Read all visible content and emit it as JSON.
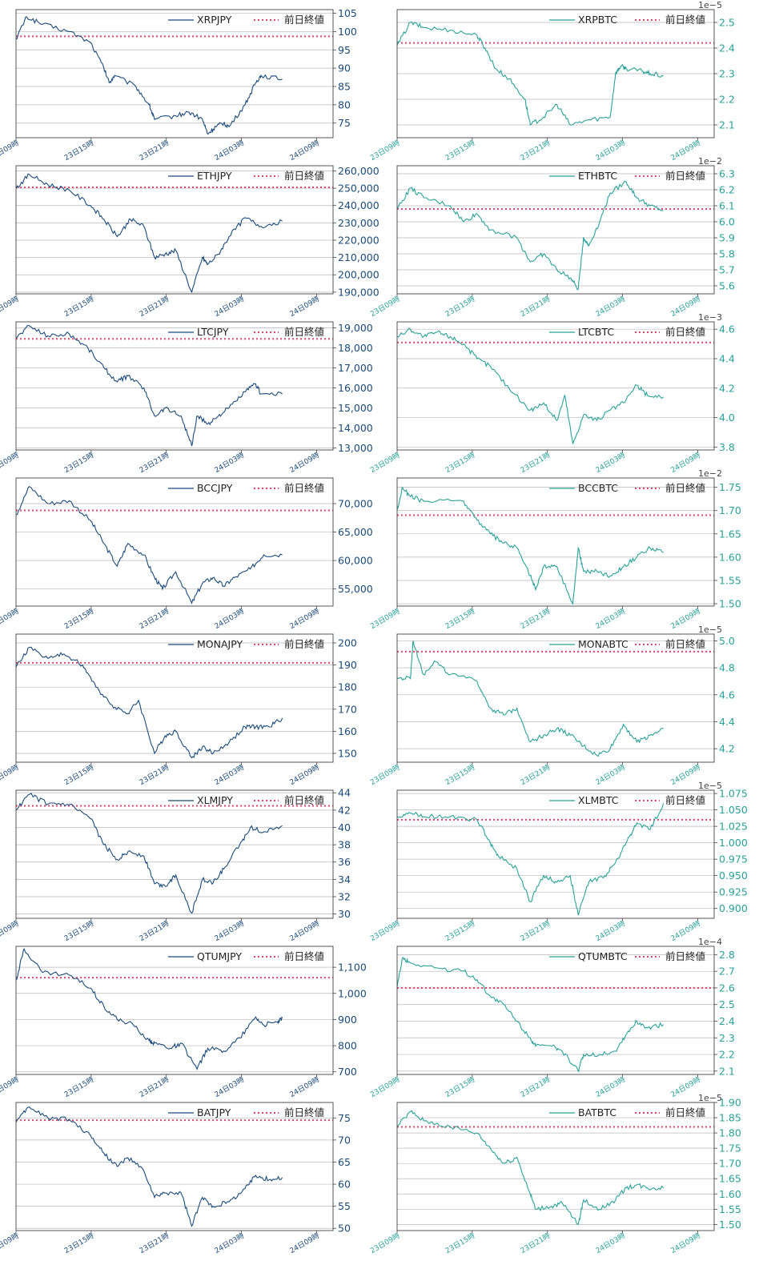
{
  "legend_ref_label": "前日終値",
  "x_tick_labels": [
    "23日09時",
    "23日15時",
    "23日21時",
    "24日03時",
    "24日09時"
  ],
  "colors": {
    "jpy": "#1b4a7a",
    "btc": "#2aa198",
    "ref": "#e0456a",
    "grid": "#b8b8b8",
    "axis": "#444444"
  },
  "chart_data": [
    {
      "type": "line",
      "title": "XRPJPY",
      "quote": "jpy",
      "ylim": [
        71,
        106
      ],
      "yticks": [
        75,
        80,
        85,
        90,
        95,
        100,
        105
      ],
      "ytick_labels": [
        "75",
        "80",
        "85",
        "90",
        "95",
        "100",
        "105"
      ],
      "ref": 98.7,
      "exp": "",
      "grid": true,
      "legend": "top-right",
      "x": [
        0,
        0.04,
        0.1,
        0.2,
        0.28,
        0.33,
        0.35,
        0.37,
        0.45,
        0.5,
        0.52,
        0.6,
        0.65,
        0.7,
        0.72,
        0.75,
        0.78,
        0.8,
        0.86,
        0.9,
        0.92,
        1.0
      ],
      "y": [
        98,
        104,
        102,
        100,
        97,
        90,
        86,
        88,
        85,
        80,
        76,
        77,
        78,
        76,
        72,
        74,
        75,
        74,
        80,
        86,
        88,
        87
      ]
    },
    {
      "type": "line",
      "title": "XRPBTC",
      "quote": "btc",
      "ylim": [
        2.05,
        2.55
      ],
      "yticks": [
        2.1,
        2.2,
        2.3,
        2.4,
        2.5
      ],
      "ytick_labels": [
        "2.1",
        "2.2",
        "2.3",
        "2.4",
        "2.5"
      ],
      "ref": 2.42,
      "exp": "1e−5",
      "grid": true,
      "legend": "top-right",
      "x": [
        0,
        0.05,
        0.1,
        0.2,
        0.3,
        0.33,
        0.37,
        0.42,
        0.48,
        0.5,
        0.55,
        0.6,
        0.65,
        0.72,
        0.8,
        0.82,
        0.84,
        0.86,
        0.92,
        0.95,
        1.0
      ],
      "y": [
        2.41,
        2.5,
        2.48,
        2.47,
        2.45,
        2.4,
        2.32,
        2.28,
        2.2,
        2.1,
        2.13,
        2.18,
        2.1,
        2.12,
        2.13,
        2.3,
        2.33,
        2.32,
        2.31,
        2.3,
        2.29
      ]
    },
    {
      "type": "line",
      "title": "ETHJPY",
      "quote": "jpy",
      "ylim": [
        189000,
        263000
      ],
      "yticks": [
        190000,
        200000,
        210000,
        220000,
        230000,
        240000,
        250000,
        260000
      ],
      "ytick_labels": [
        "190,000",
        "200,000",
        "210,000",
        "220,000",
        "230,000",
        "240,000",
        "250,000",
        "260,000"
      ],
      "ref": 250500,
      "exp": "",
      "grid": true,
      "legend": "top-right",
      "x": [
        0,
        0.05,
        0.12,
        0.2,
        0.28,
        0.33,
        0.38,
        0.43,
        0.48,
        0.52,
        0.56,
        0.6,
        0.66,
        0.7,
        0.72,
        0.76,
        0.8,
        0.86,
        0.92,
        1.0
      ],
      "y": [
        250000,
        258000,
        252000,
        249000,
        240000,
        232000,
        222000,
        232000,
        228000,
        210000,
        212000,
        214000,
        190000,
        210000,
        206000,
        212000,
        222000,
        233000,
        228000,
        231000
      ]
    },
    {
      "type": "line",
      "title": "ETHBTC",
      "quote": "btc",
      "ylim": [
        5.55,
        6.35
      ],
      "yticks": [
        5.6,
        5.7,
        5.8,
        5.9,
        6.0,
        6.1,
        6.2,
        6.3
      ],
      "ytick_labels": [
        "5.6",
        "5.7",
        "5.8",
        "5.9",
        "6.0",
        "6.1",
        "6.2",
        "6.3"
      ],
      "ref": 6.08,
      "exp": "1e−2",
      "grid": true,
      "legend": "top-right",
      "x": [
        0,
        0.05,
        0.1,
        0.2,
        0.25,
        0.3,
        0.35,
        0.45,
        0.5,
        0.55,
        0.6,
        0.65,
        0.68,
        0.7,
        0.72,
        0.76,
        0.8,
        0.86,
        0.9,
        0.95,
        1.0
      ],
      "y": [
        6.08,
        6.21,
        6.15,
        6.1,
        6.0,
        6.05,
        5.95,
        5.9,
        5.75,
        5.8,
        5.7,
        5.65,
        5.58,
        5.9,
        5.85,
        6.0,
        6.18,
        6.25,
        6.15,
        6.1,
        6.07
      ]
    },
    {
      "type": "line",
      "title": "LTCJPY",
      "quote": "jpy",
      "ylim": [
        12900,
        19300
      ],
      "yticks": [
        13000,
        14000,
        15000,
        16000,
        17000,
        18000,
        19000
      ],
      "ytick_labels": [
        "13,000",
        "14,000",
        "15,000",
        "16,000",
        "17,000",
        "18,000",
        "19,000"
      ],
      "ref": 18450,
      "exp": "",
      "grid": true,
      "legend": "top-right",
      "x": [
        0,
        0.05,
        0.12,
        0.2,
        0.27,
        0.33,
        0.38,
        0.42,
        0.48,
        0.52,
        0.56,
        0.62,
        0.66,
        0.68,
        0.72,
        0.76,
        0.8,
        0.86,
        0.9,
        0.92,
        1.0
      ],
      "y": [
        18500,
        19100,
        18600,
        18700,
        18000,
        17000,
        16300,
        16600,
        16000,
        14600,
        15000,
        14600,
        13100,
        14600,
        14200,
        14600,
        15000,
        15800,
        16200,
        15700,
        15700
      ]
    },
    {
      "type": "line",
      "title": "LTCBTC",
      "quote": "btc",
      "ylim": [
        3.78,
        4.65
      ],
      "yticks": [
        3.8,
        4.0,
        4.2,
        4.4,
        4.6
      ],
      "ytick_labels": [
        "3.8",
        "4.0",
        "4.2",
        "4.4",
        "4.6"
      ],
      "ref": 4.51,
      "exp": "1e−3",
      "grid": true,
      "legend": "top-right",
      "x": [
        0,
        0.05,
        0.1,
        0.15,
        0.2,
        0.25,
        0.3,
        0.35,
        0.42,
        0.5,
        0.55,
        0.6,
        0.63,
        0.66,
        0.7,
        0.75,
        0.8,
        0.85,
        0.9,
        0.94,
        1.0
      ],
      "y": [
        4.55,
        4.6,
        4.55,
        4.58,
        4.55,
        4.5,
        4.4,
        4.35,
        4.2,
        4.05,
        4.1,
        3.98,
        4.15,
        3.82,
        4.02,
        3.98,
        4.05,
        4.1,
        4.22,
        4.15,
        4.14
      ]
    },
    {
      "type": "line",
      "title": "BCCJPY",
      "quote": "jpy",
      "ylim": [
        52000,
        74500
      ],
      "yticks": [
        55000,
        60000,
        65000,
        70000
      ],
      "ytick_labels": [
        "55,000",
        "60,000",
        "65,000",
        "70,000"
      ],
      "ref": 68800,
      "exp": "",
      "grid": true,
      "legend": "top-right",
      "x": [
        0,
        0.05,
        0.12,
        0.2,
        0.28,
        0.33,
        0.38,
        0.42,
        0.48,
        0.52,
        0.55,
        0.6,
        0.66,
        0.7,
        0.74,
        0.78,
        0.82,
        0.88,
        0.93,
        1.0
      ],
      "y": [
        68000,
        73000,
        70000,
        70500,
        67000,
        63000,
        59000,
        63000,
        61000,
        57000,
        55000,
        58000,
        52500,
        56000,
        57000,
        55500,
        57000,
        58500,
        61000,
        61000
      ]
    },
    {
      "type": "line",
      "title": "BCCBTC",
      "quote": "btc",
      "ylim": [
        1.495,
        1.77
      ],
      "yticks": [
        1.5,
        1.55,
        1.6,
        1.65,
        1.7,
        1.75
      ],
      "ytick_labels": [
        "1.50",
        "1.55",
        "1.60",
        "1.65",
        "1.70",
        "1.75"
      ],
      "ref": 1.69,
      "exp": "1e−2",
      "grid": true,
      "legend": "top-right",
      "x": [
        0,
        0.02,
        0.05,
        0.1,
        0.25,
        0.3,
        0.35,
        0.4,
        0.45,
        0.5,
        0.52,
        0.55,
        0.6,
        0.66,
        0.68,
        0.7,
        0.75,
        0.8,
        0.85,
        0.9,
        0.95,
        1.0
      ],
      "y": [
        1.7,
        1.75,
        1.73,
        1.72,
        1.72,
        1.68,
        1.65,
        1.63,
        1.62,
        1.56,
        1.53,
        1.58,
        1.58,
        1.5,
        1.62,
        1.57,
        1.57,
        1.56,
        1.58,
        1.6,
        1.62,
        1.61
      ]
    },
    {
      "type": "line",
      "title": "MONAJPY",
      "quote": "jpy",
      "ylim": [
        146,
        204
      ],
      "yticks": [
        150,
        160,
        170,
        180,
        190,
        200
      ],
      "ytick_labels": [
        "150",
        "160",
        "170",
        "180",
        "190",
        "200"
      ],
      "ref": 191,
      "exp": "",
      "grid": true,
      "legend": "top-right",
      "x": [
        0,
        0.05,
        0.12,
        0.18,
        0.25,
        0.3,
        0.36,
        0.42,
        0.46,
        0.52,
        0.56,
        0.6,
        0.66,
        0.7,
        0.74,
        0.8,
        0.86,
        0.9,
        0.95,
        1.0
      ],
      "y": [
        189,
        198,
        193,
        195,
        190,
        180,
        172,
        168,
        174,
        150,
        158,
        160,
        148,
        153,
        150,
        155,
        162,
        162,
        162,
        166
      ]
    },
    {
      "type": "line",
      "title": "MONABTC",
      "quote": "btc",
      "ylim": [
        4.1,
        5.05
      ],
      "yticks": [
        4.2,
        4.4,
        4.6,
        4.8,
        5.0
      ],
      "ytick_labels": [
        "4.2",
        "4.4",
        "4.6",
        "4.8",
        "5.0"
      ],
      "ref": 4.92,
      "exp": "1e−5",
      "grid": true,
      "legend": "top-right",
      "x": [
        0,
        0.05,
        0.06,
        0.1,
        0.14,
        0.2,
        0.3,
        0.35,
        0.4,
        0.45,
        0.5,
        0.55,
        0.6,
        0.65,
        0.7,
        0.75,
        0.8,
        0.85,
        0.9,
        0.95,
        1.0
      ],
      "y": [
        4.72,
        4.72,
        5.0,
        4.75,
        4.85,
        4.75,
        4.7,
        4.5,
        4.45,
        4.5,
        4.25,
        4.3,
        4.35,
        4.3,
        4.22,
        4.15,
        4.2,
        4.38,
        4.25,
        4.3,
        4.35
      ]
    },
    {
      "type": "line",
      "title": "XLMJPY",
      "quote": "jpy",
      "ylim": [
        29.5,
        44.3
      ],
      "yticks": [
        30,
        32,
        34,
        36,
        38,
        40,
        42,
        44
      ],
      "ytick_labels": [
        "30",
        "32",
        "34",
        "36",
        "38",
        "40",
        "42",
        "44"
      ],
      "ref": 42.5,
      "exp": "",
      "grid": true,
      "legend": "top-right",
      "x": [
        0,
        0.05,
        0.12,
        0.2,
        0.28,
        0.33,
        0.38,
        0.42,
        0.48,
        0.52,
        0.56,
        0.6,
        0.66,
        0.7,
        0.74,
        0.78,
        0.84,
        0.88,
        0.93,
        1.0
      ],
      "y": [
        42,
        43.8,
        42.7,
        42.6,
        41,
        38,
        36.3,
        37.2,
        36.7,
        33.5,
        33.2,
        34.5,
        30.1,
        34,
        33.6,
        35.2,
        38,
        40,
        39.5,
        40.2
      ]
    },
    {
      "type": "line",
      "title": "XLMBTC",
      "quote": "btc",
      "ylim": [
        0.885,
        1.08
      ],
      "yticks": [
        0.9,
        0.925,
        0.95,
        0.975,
        1.0,
        1.025,
        1.05,
        1.075
      ],
      "ytick_labels": [
        "0.900",
        "0.925",
        "0.950",
        "0.975",
        "1.000",
        "1.025",
        "1.050",
        "1.075"
      ],
      "ref": 1.035,
      "exp": "1e−5",
      "grid": true,
      "legend": "top-right",
      "x": [
        0,
        0.05,
        0.1,
        0.2,
        0.3,
        0.35,
        0.38,
        0.45,
        0.5,
        0.55,
        0.6,
        0.65,
        0.68,
        0.72,
        0.78,
        0.82,
        0.86,
        0.9,
        0.95,
        1.0
      ],
      "y": [
        1.04,
        1.045,
        1.04,
        1.04,
        1.035,
        1.0,
        0.98,
        0.96,
        0.91,
        0.95,
        0.94,
        0.95,
        0.89,
        0.94,
        0.95,
        0.97,
        1.0,
        1.03,
        1.02,
        1.06
      ]
    },
    {
      "type": "line",
      "title": "QTUMJPY",
      "quote": "jpy",
      "ylim": [
        690,
        1180
      ],
      "yticks": [
        700,
        800,
        900,
        1000,
        1100
      ],
      "ytick_labels": [
        "700",
        "800",
        "900",
        "1,000",
        "1,100"
      ],
      "ref": 1060,
      "exp": "",
      "grid": true,
      "legend": "top-right",
      "x": [
        0,
        0.03,
        0.1,
        0.2,
        0.28,
        0.33,
        0.38,
        0.44,
        0.5,
        0.52,
        0.58,
        0.62,
        0.68,
        0.72,
        0.78,
        0.84,
        0.9,
        0.93,
        0.98,
        1.0
      ],
      "y": [
        1050,
        1170,
        1080,
        1070,
        1020,
        950,
        900,
        880,
        820,
        810,
        790,
        810,
        710,
        790,
        780,
        830,
        910,
        880,
        890,
        905
      ]
    },
    {
      "type": "line",
      "title": "QTUMBTC",
      "quote": "btc",
      "ylim": [
        2.08,
        2.85
      ],
      "yticks": [
        2.1,
        2.2,
        2.3,
        2.4,
        2.5,
        2.6,
        2.7,
        2.8
      ],
      "ytick_labels": [
        "2.1",
        "2.2",
        "2.3",
        "2.4",
        "2.5",
        "2.6",
        "2.7",
        "2.8"
      ],
      "ref": 2.6,
      "exp": "1e−4",
      "grid": true,
      "legend": "top-right",
      "x": [
        0,
        0.02,
        0.05,
        0.15,
        0.25,
        0.3,
        0.35,
        0.4,
        0.45,
        0.5,
        0.52,
        0.58,
        0.62,
        0.68,
        0.7,
        0.76,
        0.82,
        0.86,
        0.9,
        0.94,
        1.0
      ],
      "y": [
        2.6,
        2.78,
        2.75,
        2.72,
        2.7,
        2.65,
        2.55,
        2.5,
        2.4,
        2.3,
        2.25,
        2.25,
        2.22,
        2.1,
        2.2,
        2.2,
        2.22,
        2.32,
        2.4,
        2.36,
        2.38
      ]
    },
    {
      "type": "line",
      "title": "BATJPY",
      "quote": "jpy",
      "ylim": [
        49.5,
        78.5
      ],
      "yticks": [
        50,
        55,
        60,
        65,
        70,
        75
      ],
      "ytick_labels": [
        "50",
        "55",
        "60",
        "65",
        "70",
        "75"
      ],
      "ref": 74.5,
      "exp": "",
      "grid": true,
      "legend": "top-right",
      "x": [
        0,
        0.05,
        0.12,
        0.2,
        0.28,
        0.33,
        0.38,
        0.42,
        0.48,
        0.52,
        0.56,
        0.62,
        0.66,
        0.7,
        0.74,
        0.8,
        0.86,
        0.9,
        0.95,
        1.0
      ],
      "y": [
        74,
        77.5,
        75,
        74.7,
        71,
        67,
        64,
        66,
        63,
        57,
        58,
        58,
        50.5,
        57,
        55,
        56,
        59,
        62,
        61,
        61.5
      ]
    },
    {
      "type": "line",
      "title": "BATBTC",
      "quote": "btc",
      "ylim": [
        1.48,
        1.9
      ],
      "yticks": [
        1.5,
        1.55,
        1.6,
        1.65,
        1.7,
        1.75,
        1.8,
        1.85,
        1.9
      ],
      "ytick_labels": [
        "1.50",
        "1.55",
        "1.60",
        "1.65",
        "1.70",
        "1.75",
        "1.80",
        "1.85",
        "1.90"
      ],
      "ref": 1.82,
      "exp": "1e−5",
      "grid": true,
      "legend": "top-right",
      "x": [
        0,
        0.05,
        0.1,
        0.2,
        0.3,
        0.35,
        0.4,
        0.45,
        0.5,
        0.52,
        0.58,
        0.62,
        0.68,
        0.7,
        0.76,
        0.82,
        0.86,
        0.9,
        0.94,
        1.0
      ],
      "y": [
        1.82,
        1.87,
        1.84,
        1.82,
        1.8,
        1.75,
        1.7,
        1.72,
        1.6,
        1.55,
        1.56,
        1.57,
        1.5,
        1.58,
        1.55,
        1.58,
        1.62,
        1.63,
        1.62,
        1.62
      ]
    }
  ]
}
